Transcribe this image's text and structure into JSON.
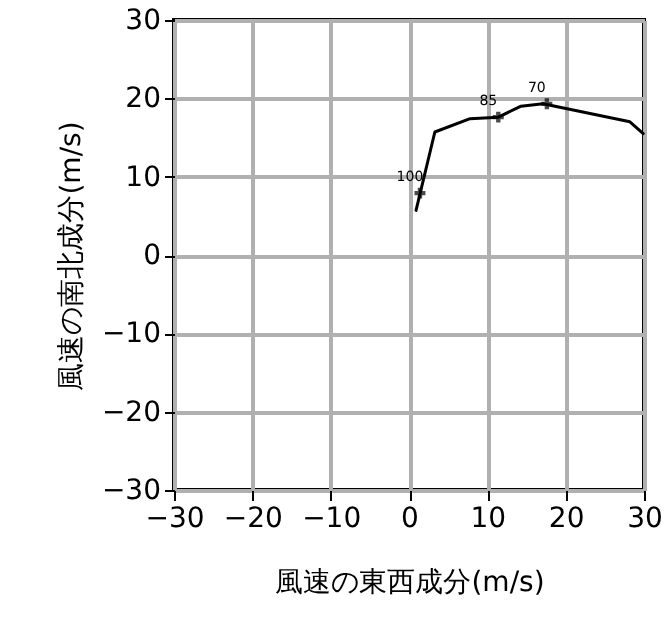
{
  "chart_data": {
    "type": "line",
    "xlabel": "風速の東西成分(m/s)",
    "ylabel": "風速の南北成分(m/s)",
    "x": [
      0.9,
      3.3,
      7.8,
      11.4,
      14.3,
      17.1,
      28.2,
      29.9
    ],
    "series": [
      {
        "color": "#000000",
        "values": [
          5.7,
          15.7,
          17.4,
          17.6,
          19.0,
          19.3,
          17.0,
          15.5
        ]
      }
    ],
    "xlim": [
      -30,
      30
    ],
    "ylim": [
      -30,
      30
    ],
    "xticks": [
      -30,
      -20,
      -10,
      0,
      10,
      20,
      30
    ],
    "yticks": [
      -30,
      -20,
      -10,
      0,
      10,
      20,
      30
    ],
    "grid": true,
    "marker": "none",
    "line_style": "solid",
    "annotations": [
      {
        "text": "100",
        "x": 1.4,
        "y": 7.9
      },
      {
        "text": "85",
        "x": 11.4,
        "y": 17.6
      },
      {
        "text": "70",
        "x": 17.6,
        "y": 19.3
      }
    ]
  }
}
